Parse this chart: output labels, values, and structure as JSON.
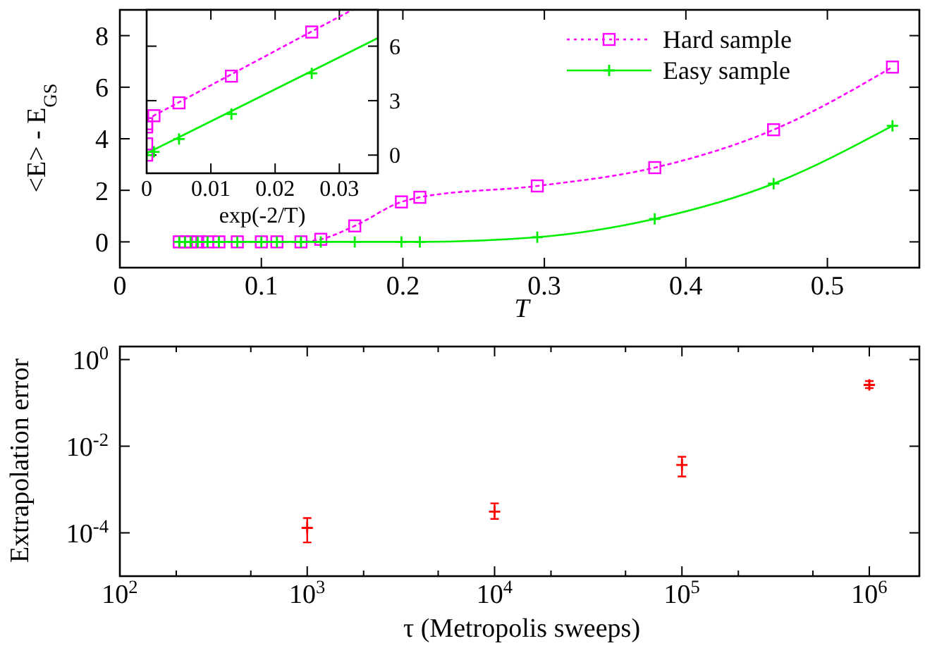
{
  "chart_data": [
    {
      "type": "line",
      "xlabel": "T",
      "ylabel": "<E> - E$_{GS}$",
      "xlim": [
        0,
        0.565
      ],
      "ylim": [
        -1,
        9
      ],
      "xticks": [
        0,
        0.1,
        0.2,
        0.3,
        0.4,
        0.5
      ],
      "yticks": [
        0,
        2,
        4,
        6,
        8
      ],
      "grid": false,
      "legend": "top right",
      "series": [
        {
          "name": "Hard sample",
          "color": "#ff00ff",
          "marker": "square",
          "line_style": "dotted",
          "x": [
            0.042,
            0.046,
            0.05,
            0.055,
            0.062,
            0.07,
            0.083,
            0.1,
            0.111,
            0.128,
            0.142,
            0.166,
            0.199,
            0.212,
            0.295,
            0.378,
            0.462,
            0.546
          ],
          "values": [
            0,
            0,
            0,
            0,
            0,
            0,
            0,
            0,
            0,
            0,
            0.1,
            0.62,
            1.55,
            1.73,
            2.17,
            2.88,
            4.35,
            6.78
          ]
        },
        {
          "name": "Easy sample",
          "color": "#00ee00",
          "marker": "cross",
          "line_style": "solid",
          "x": [
            0.042,
            0.046,
            0.05,
            0.055,
            0.062,
            0.07,
            0.083,
            0.1,
            0.111,
            0.128,
            0.142,
            0.166,
            0.199,
            0.212,
            0.295,
            0.378,
            0.462,
            0.546
          ],
          "values": [
            0,
            0,
            0,
            0,
            0,
            0,
            0,
            0,
            0,
            0,
            0,
            0,
            0,
            0,
            0.18,
            0.89,
            2.26,
            4.5
          ]
        }
      ]
    },
    {
      "type": "scatter",
      "xlabel": "exp(-2/T)",
      "xlim": [
        0,
        0.036
      ],
      "ylim": [
        -1,
        8
      ],
      "xticks": [
        0,
        0.01,
        0.02,
        0.03
      ],
      "yticks": [
        0,
        3,
        6
      ],
      "grid": false,
      "series": [
        {
          "color": "#ff00ff",
          "marker": "square",
          "x": [
            0,
            0,
            0,
            0,
            0.00114,
            0.00504,
            0.0132,
            0.0257
          ],
          "values": [
            0,
            0.62,
            1.55,
            1.73,
            2.17,
            2.88,
            4.35,
            6.78
          ]
        },
        {
          "color": "#00ee00",
          "marker": "cross",
          "x": [
            0,
            0.00114,
            0.00504,
            0.0132,
            0.0257
          ],
          "values": [
            0,
            0.18,
            0.89,
            2.26,
            4.5
          ]
        },
        {
          "type": "line",
          "color": "#ff00ff",
          "line_style": "dotted",
          "x": [
            0.001,
            0.032
          ],
          "values": [
            2.15,
            8
          ]
        },
        {
          "type": "line",
          "color": "#00ee00",
          "line_style": "solid",
          "x": [
            0,
            0.036
          ],
          "values": [
            0.1,
            6.45
          ]
        }
      ]
    },
    {
      "type": "scatter",
      "xlabel": "τ  (Metropolis sweeps)",
      "ylabel": "Extrapolation error",
      "log": "xy",
      "xlim": [
        100,
        1850000
      ],
      "ylim": [
        1e-05,
        2
      ],
      "xticks": [
        {
          "value": 100,
          "label": "10$^{2}$"
        },
        {
          "value": 200,
          "label": null
        },
        {
          "value": 500,
          "label": null
        },
        {
          "value": 1000,
          "label": "10$^{3}$"
        },
        {
          "value": 2000,
          "label": null
        },
        {
          "value": 5000,
          "label": null
        },
        {
          "value": 10000,
          "label": "10$^{4}$"
        },
        {
          "value": 20000,
          "label": null
        },
        {
          "value": 50000,
          "label": null
        },
        {
          "value": 100000,
          "label": "10$^{5}$"
        },
        {
          "value": 200000,
          "label": null
        },
        {
          "value": 500000,
          "label": null
        },
        {
          "value": 1000000,
          "label": "10$^{6}$"
        }
      ],
      "yticks": [
        {
          "value": 0.0001,
          "label": "10$^{-4}$"
        },
        {
          "value": 0.01,
          "label": "10$^{-2}$"
        },
        {
          "value": 1,
          "label": "10$^{0}$"
        }
      ],
      "grid": false,
      "marker": "cross",
      "series": [
        {
          "color": "#ff0000",
          "x": [
            1000,
            10000,
            100000,
            1000000
          ],
          "values": [
            0.00013,
            0.00031,
            0.0037,
            0.26
          ],
          "errors": [
            [
              6e-05,
              0.00022
            ],
            [
              0.00021,
              0.00048
            ],
            [
              0.002,
              0.0057
            ],
            [
              0.22,
              0.32
            ]
          ]
        }
      ]
    }
  ]
}
